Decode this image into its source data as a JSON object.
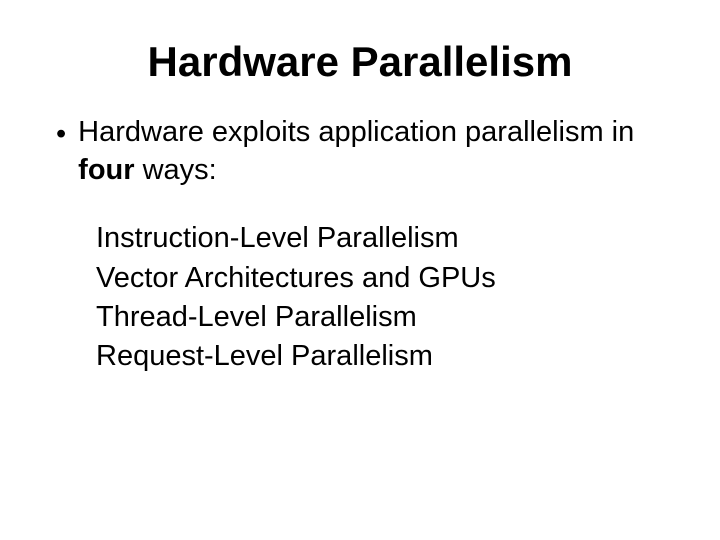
{
  "slide": {
    "title": "Hardware Parallelism",
    "title_fontsize": 42,
    "title_fontweight": "bold",
    "title_color": "#000000",
    "background_color": "#ffffff",
    "font_family": "Verdana, Geneva, sans-serif",
    "bullet": {
      "text_before": "Hardware exploits application parallelism in ",
      "text_bold": "four",
      "text_after": " ways:",
      "fontsize": 29,
      "color": "#000000"
    },
    "sublist": {
      "fontsize": 29,
      "color": "#000000",
      "items": [
        "Instruction-Level Parallelism",
        "Vector Architectures and GPUs",
        "Thread-Level Parallelism",
        "Request-Level Parallelism"
      ]
    }
  }
}
